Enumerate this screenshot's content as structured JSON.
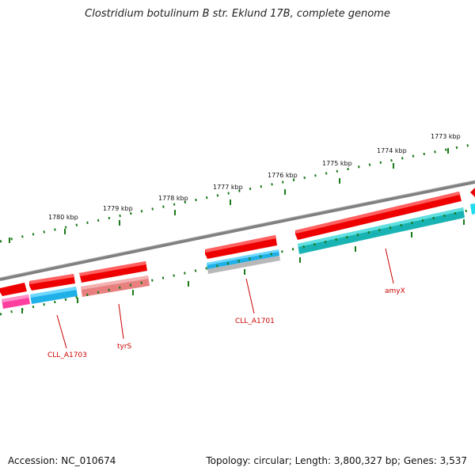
{
  "title": "Clostridium botulinum B str. Eklund 17B, complete genome",
  "accession": "Accession: NC_010674",
  "topology": "Topology: circular; Length: 3,800,327 bp; Genes: 3,537",
  "kbp_labels": [
    "1773 kbp",
    "1774 kbp",
    "1775 kbp",
    "1776 kbp",
    "1777 kbp",
    "1778 kbp",
    "1779 kbp",
    "1780 kbp"
  ],
  "gene_labels": [
    "CLL_A1703",
    "tyrS",
    "CLL_A1701",
    "amyX"
  ],
  "colors": {
    "backbone": "#808080",
    "tick": "#1a7a1a",
    "forward_gene": "#ee0000",
    "cds_blue": "#1fb0e8",
    "cds_teal": "#19b3b3",
    "cds_pink": "#ff3fa0",
    "cds_salmon": "#e88080",
    "cds_gray": "#b0b0b0",
    "label": "#cc0000"
  }
}
